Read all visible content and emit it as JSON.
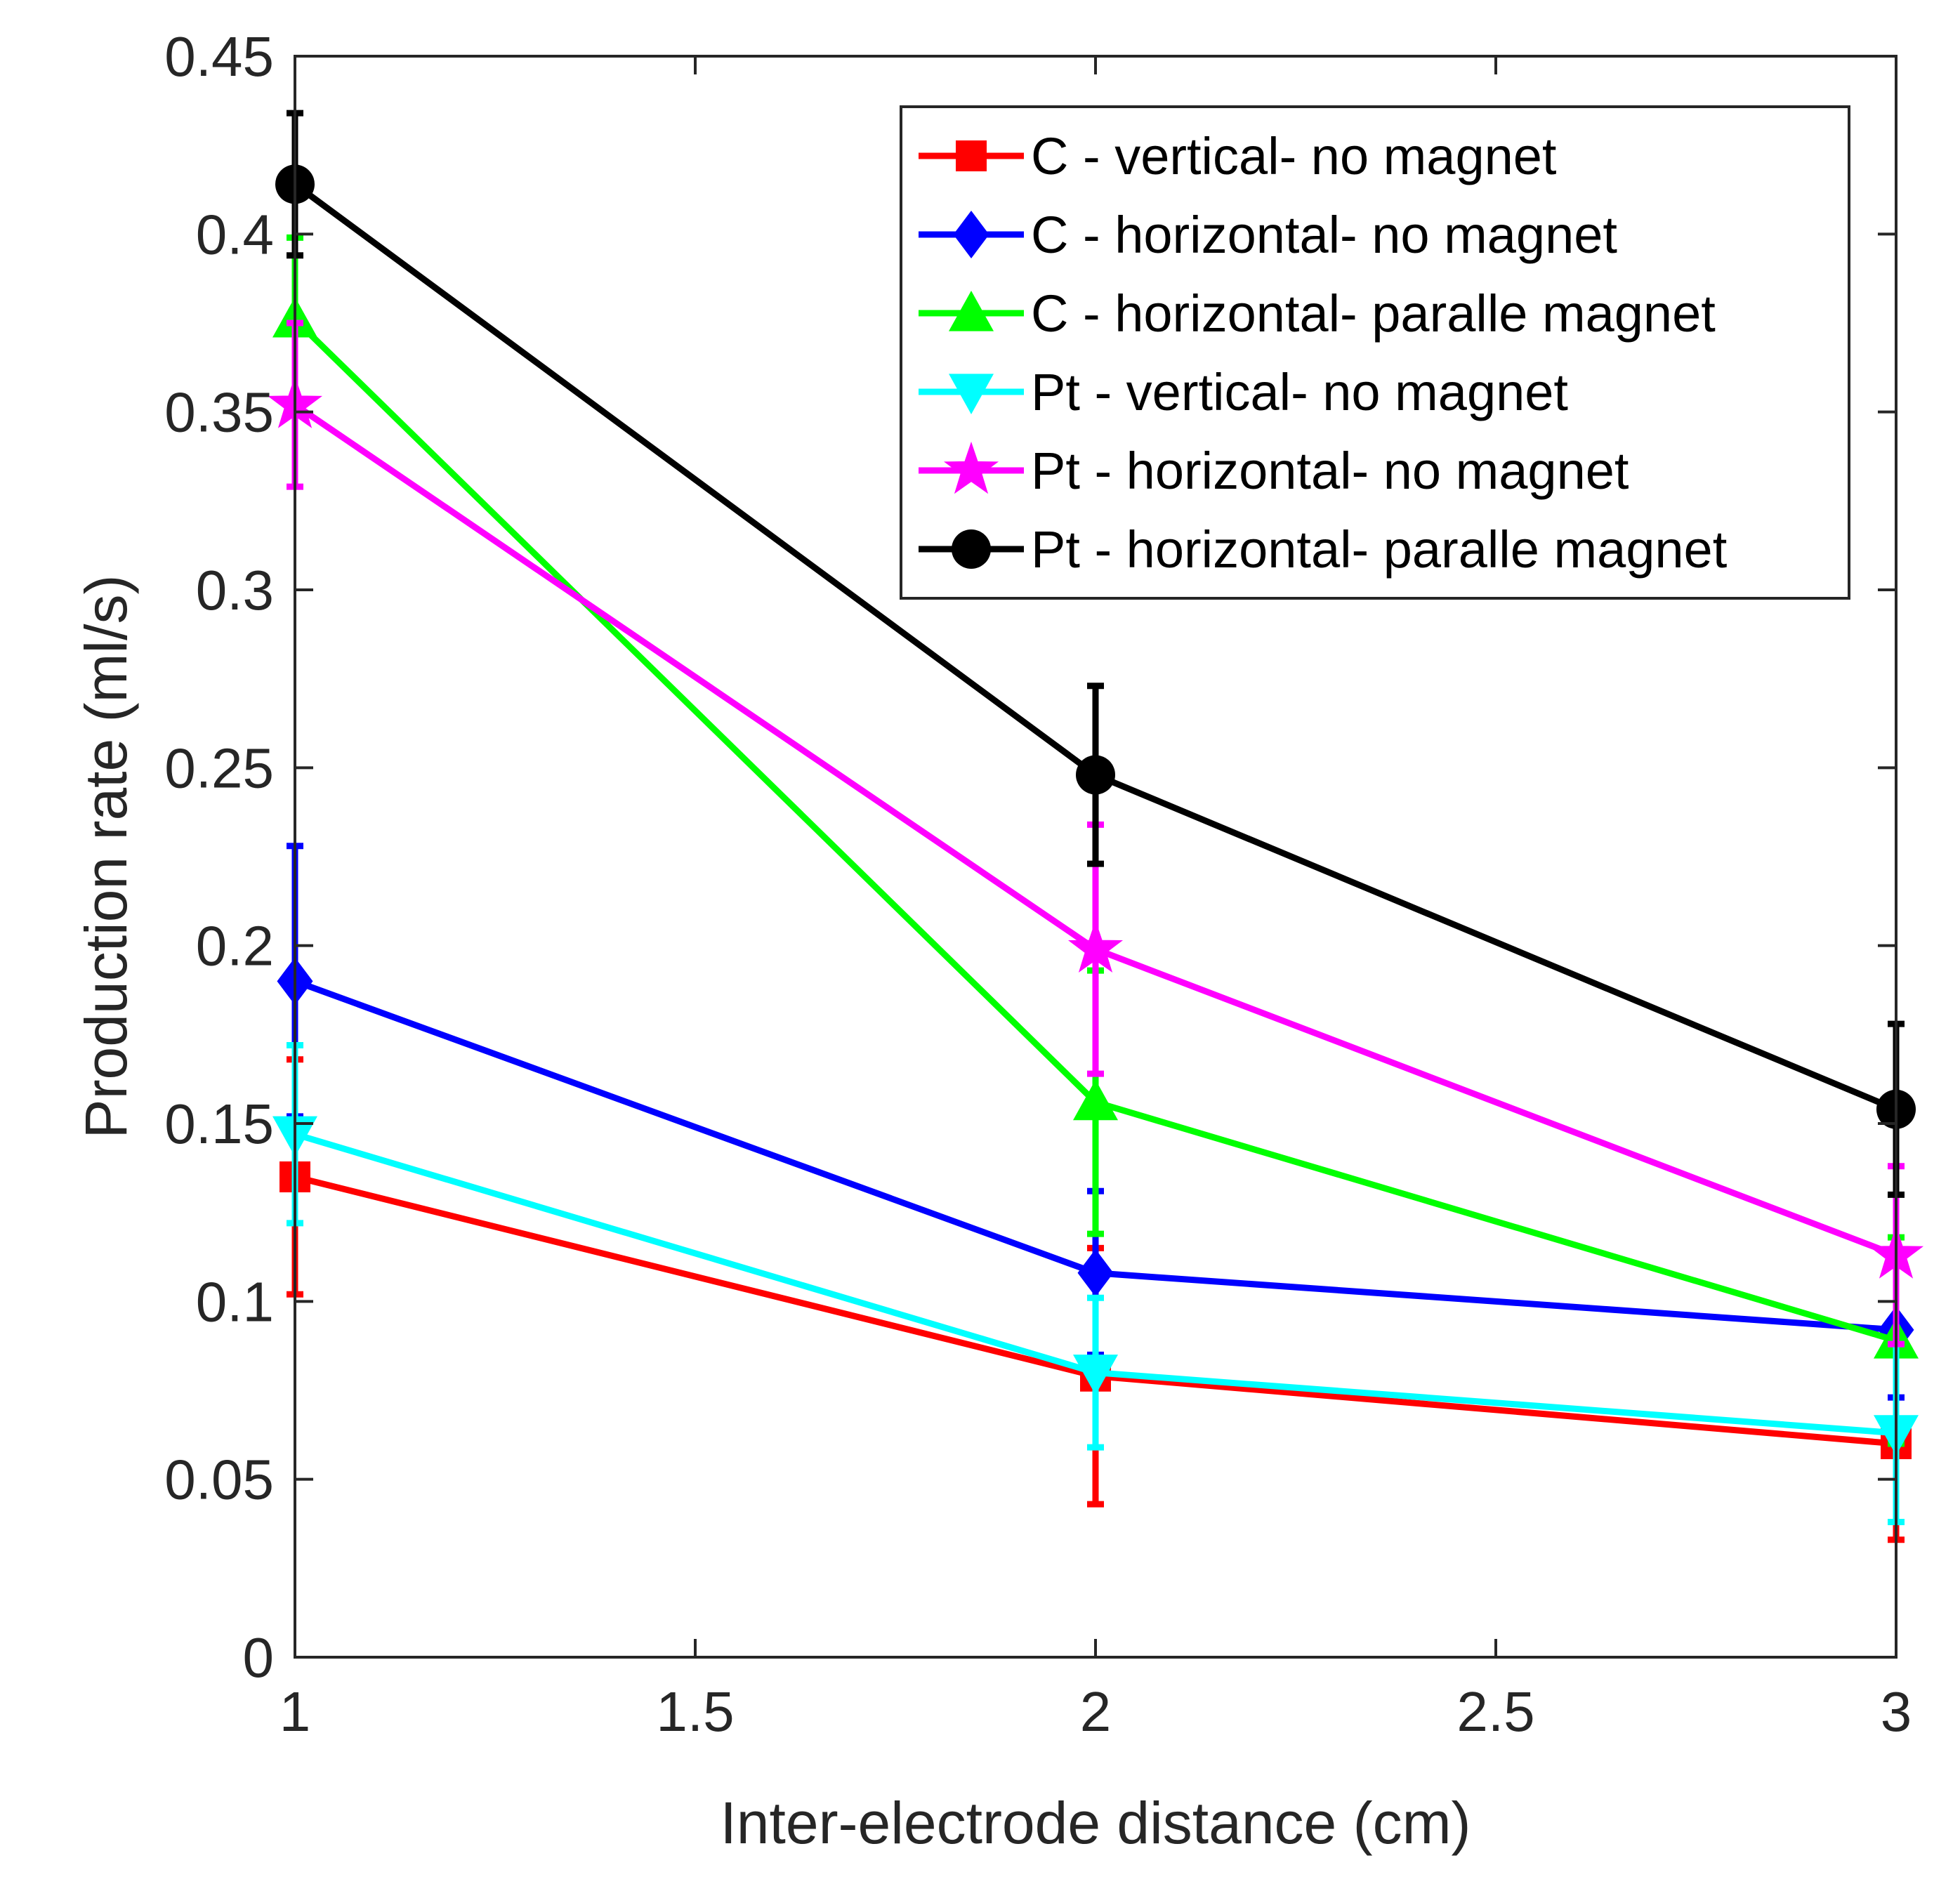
{
  "chart_data": {
    "type": "line",
    "title": "",
    "xlabel": "Inter-electrode distance (cm)",
    "ylabel": "Production rate (ml/s)",
    "xlim": [
      1,
      3
    ],
    "ylim": [
      0,
      0.45
    ],
    "xticks": [
      1,
      1.5,
      2,
      2.5,
      3
    ],
    "xtick_labels": [
      "1",
      "1.5",
      "2",
      "2.5",
      "3"
    ],
    "yticks": [
      0,
      0.05,
      0.1,
      0.15,
      0.2,
      0.25,
      0.3,
      0.35,
      0.4,
      0.45
    ],
    "ytick_labels": [
      "0",
      "0.05",
      "0.1",
      "0.15",
      "0.2",
      "0.25",
      "0.3",
      "0.35",
      "0.4",
      "0.45"
    ],
    "grid": false,
    "legend_position": "top-right",
    "x": [
      1,
      2,
      3
    ],
    "series": [
      {
        "name": "C - vertical- no magnet",
        "color": "#ff0000",
        "marker": "square",
        "values": [
          0.135,
          0.079,
          0.06
        ],
        "errors": [
          0.033,
          0.036,
          0.027
        ]
      },
      {
        "name": "C - horizontal- no magnet",
        "color": "#0000ff",
        "marker": "diamond",
        "values": [
          0.19,
          0.108,
          0.092
        ],
        "errors": [
          0.038,
          0.023,
          0.019
        ]
      },
      {
        "name": "C - horizontal- paralle magnet",
        "color": "#00ff00",
        "marker": "triangle-up",
        "values": [
          0.376,
          0.156,
          0.089
        ],
        "errors": [
          0.023,
          0.037,
          0.029
        ]
      },
      {
        "name": "Pt - vertical- no magnet",
        "color": "#00ffff",
        "marker": "triangle-down",
        "values": [
          0.147,
          0.08,
          0.063
        ],
        "errors": [
          0.025,
          0.021,
          0.025
        ]
      },
      {
        "name": "Pt - horizontal- no magnet",
        "color": "#ff00ff",
        "marker": "star",
        "values": [
          0.352,
          0.199,
          0.113
        ],
        "errors": [
          0.023,
          0.035,
          0.025
        ]
      },
      {
        "name": "Pt - horizontal- paralle magnet",
        "color": "#000000",
        "marker": "circle",
        "values": [
          0.414,
          0.248,
          0.154
        ],
        "errors": [
          0.02,
          0.025,
          0.024
        ]
      }
    ]
  }
}
